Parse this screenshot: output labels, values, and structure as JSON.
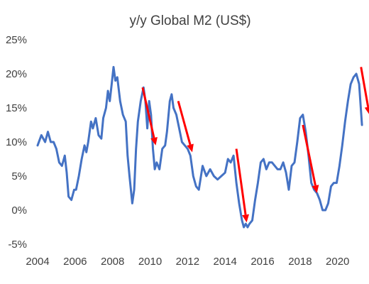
{
  "chart_data": {
    "type": "line",
    "title": "y/y Global M2 (US$)",
    "xlabel": "",
    "ylabel": "",
    "x_range": [
      2004,
      2021.6
    ],
    "ylim": [
      -5,
      25
    ],
    "y_ticks": [
      -5,
      0,
      5,
      10,
      15,
      20,
      25
    ],
    "y_tick_labels": [
      "-5%",
      "0%",
      "5%",
      "10%",
      "15%",
      "20%",
      "25%"
    ],
    "x_ticks": [
      2004,
      2006,
      2008,
      2010,
      2012,
      2014,
      2016,
      2018,
      2020
    ],
    "x_tick_labels": [
      "2004",
      "2006",
      "2008",
      "2010",
      "2012",
      "2014",
      "2016",
      "2018",
      "2020"
    ],
    "grid": false,
    "legend": "none",
    "colors": {
      "series": "#4472c4",
      "arrows": "#ff0000",
      "text": "#404040"
    },
    "series": [
      {
        "x": [
          2004.0,
          2004.2,
          2004.4,
          2004.55,
          2004.7,
          2004.85,
          2005.0,
          2005.15,
          2005.3,
          2005.45,
          2005.55,
          2005.65,
          2005.8,
          2005.95,
          2006.05,
          2006.2,
          2006.35,
          2006.5,
          2006.6,
          2006.7,
          2006.85,
          2006.95,
          2007.1,
          2007.25,
          2007.4,
          2007.5,
          2007.65,
          2007.75,
          2007.85,
          2007.95,
          2008.05,
          2008.15,
          2008.25,
          2008.4,
          2008.55,
          2008.7,
          2008.8,
          2008.9,
          2009.05,
          2009.15,
          2009.25,
          2009.35,
          2009.5,
          2009.65,
          2009.75,
          2009.85,
          2009.95,
          2010.05,
          2010.15,
          2010.25,
          2010.35,
          2010.5,
          2010.65,
          2010.8,
          2010.9,
          2011.05,
          2011.15,
          2011.25,
          2011.4,
          2011.55,
          2011.7,
          2011.85,
          2012.0,
          2012.15,
          2012.3,
          2012.45,
          2012.6,
          2012.8,
          2013.0,
          2013.2,
          2013.4,
          2013.6,
          2013.8,
          2014.0,
          2014.15,
          2014.3,
          2014.45,
          2014.6,
          2014.75,
          2014.9,
          2015.0,
          2015.1,
          2015.2,
          2015.3,
          2015.45,
          2015.6,
          2015.75,
          2015.9,
          2016.05,
          2016.2,
          2016.35,
          2016.5,
          2016.65,
          2016.8,
          2016.95,
          2017.1,
          2017.25,
          2017.4,
          2017.55,
          2017.7,
          2017.85,
          2018.0,
          2018.15,
          2018.3,
          2018.45,
          2018.6,
          2018.75,
          2018.9,
          2019.05,
          2019.2,
          2019.35,
          2019.5,
          2019.65,
          2019.8,
          2019.95,
          2020.1,
          2020.25,
          2020.4,
          2020.55,
          2020.7,
          2020.85,
          2021.0,
          2021.15,
          2021.3
        ],
        "y": [
          9.5,
          11.0,
          10.0,
          11.5,
          10.0,
          10.0,
          9.0,
          7.0,
          6.5,
          8.0,
          5.5,
          2.0,
          1.5,
          3.0,
          3.0,
          5.0,
          7.5,
          9.5,
          8.5,
          10.0,
          13.0,
          12.0,
          13.5,
          11.0,
          10.5,
          13.5,
          15.0,
          17.5,
          16.0,
          18.5,
          21.0,
          19.0,
          19.5,
          16.0,
          14.0,
          13.0,
          8.0,
          5.0,
          1.0,
          3.0,
          9.0,
          13.0,
          16.0,
          18.0,
          16.0,
          12.0,
          16.0,
          14.0,
          9.0,
          6.0,
          7.0,
          6.0,
          9.0,
          9.5,
          11.5,
          16.0,
          17.0,
          15.0,
          14.0,
          12.0,
          10.0,
          9.5,
          9.0,
          8.0,
          5.0,
          3.5,
          3.0,
          6.5,
          5.0,
          6.0,
          5.0,
          4.5,
          5.0,
          5.5,
          7.5,
          7.0,
          8.0,
          4.0,
          1.0,
          -1.5,
          -2.5,
          -2.0,
          -2.5,
          -2.0,
          -1.5,
          1.5,
          4.0,
          7.0,
          7.5,
          6.0,
          7.0,
          7.0,
          6.5,
          6.0,
          6.0,
          7.0,
          5.5,
          3.0,
          6.5,
          7.0,
          10.0,
          13.5,
          14.0,
          11.5,
          8.0,
          4.0,
          3.0,
          2.5,
          1.5,
          0.0,
          0.0,
          1.0,
          3.5,
          4.0,
          4.0,
          6.5,
          9.5,
          13.0,
          16.0,
          18.5,
          19.5,
          20.0,
          18.5,
          12.5
        ]
      }
    ],
    "annotations": [
      {
        "kind": "arrow",
        "from": [
          2009.6,
          18.0
        ],
        "to": [
          2010.3,
          9.5
        ]
      },
      {
        "kind": "arrow",
        "from": [
          2011.5,
          16.0
        ],
        "to": [
          2012.25,
          8.5
        ]
      },
      {
        "kind": "arrow",
        "from": [
          2014.6,
          9.0
        ],
        "to": [
          2015.15,
          -1.8
        ]
      },
      {
        "kind": "arrow",
        "from": [
          2018.15,
          12.5
        ],
        "to": [
          2018.9,
          2.5
        ]
      },
      {
        "kind": "arrow",
        "from": [
          2021.25,
          21.0
        ],
        "to": [
          2021.7,
          14.0
        ]
      }
    ]
  }
}
